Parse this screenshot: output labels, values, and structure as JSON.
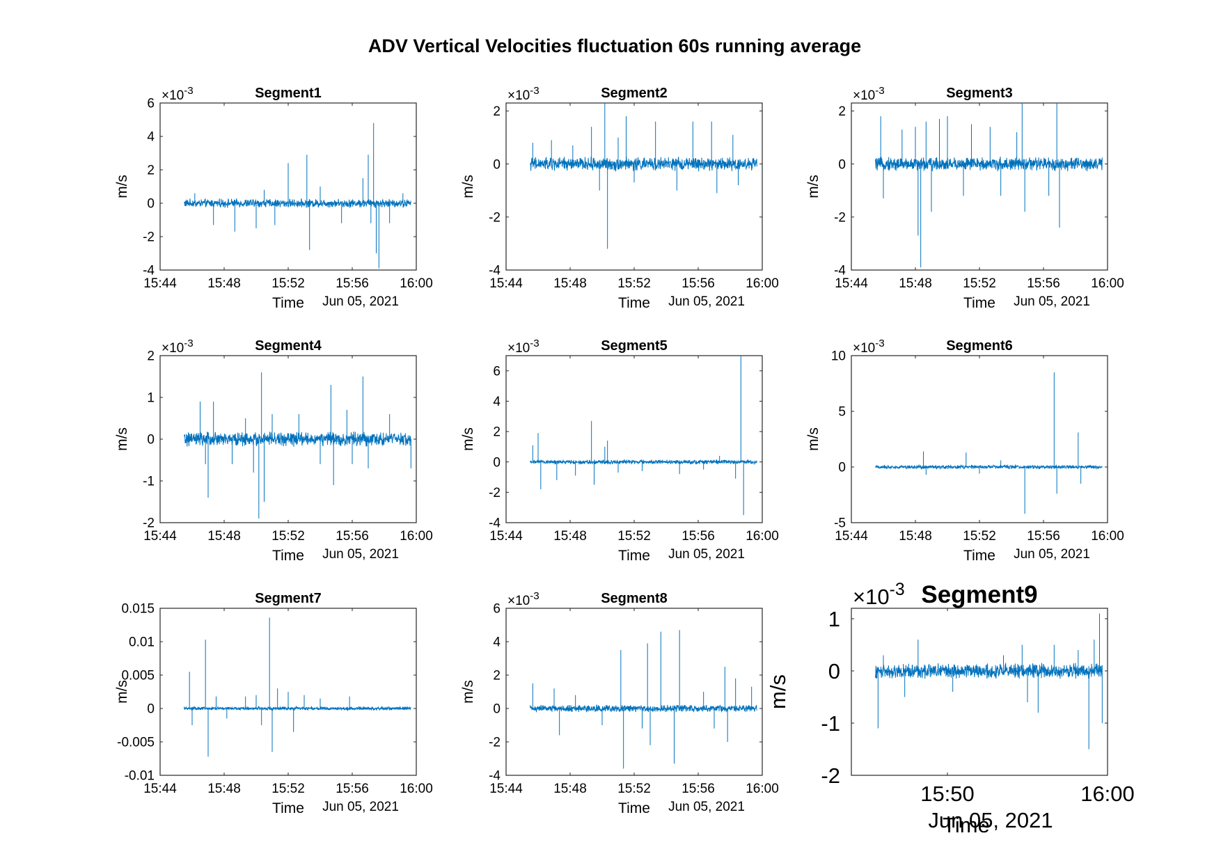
{
  "figure": {
    "title": "ADV Vertical Velocities fluctuation 60s running average",
    "line_color": "#0072BD"
  },
  "chart_data": [
    {
      "type": "line",
      "title": "Segment1",
      "xlabel": "Time",
      "ylabel": "m/s",
      "date_label": "Jun 05, 2021",
      "exponent_label": "×10",
      "exponent": "-3",
      "x_range": [
        "15:44",
        "16:00"
      ],
      "x_ticks": [
        "15:44",
        "15:48",
        "15:52",
        "15:56",
        "16:00"
      ],
      "y_range": [
        -4,
        6
      ],
      "y_ticks": [
        "-4",
        "-2",
        "0",
        "2",
        "4",
        "6"
      ],
      "data_x_range": [
        "15:45:30",
        "15:59:40"
      ],
      "noise": 0.18,
      "spikes": [
        {
          "x": "15:46:10",
          "y": 0.6
        },
        {
          "x": "15:47:20",
          "y": -1.3
        },
        {
          "x": "15:48:40",
          "y": -1.7
        },
        {
          "x": "15:50:00",
          "y": -1.5
        },
        {
          "x": "15:50:30",
          "y": 0.8
        },
        {
          "x": "15:51:10",
          "y": -1.3
        },
        {
          "x": "15:52:00",
          "y": 2.4
        },
        {
          "x": "15:53:10",
          "y": 2.9
        },
        {
          "x": "15:53:20",
          "y": -2.8
        },
        {
          "x": "15:54:00",
          "y": 1.0
        },
        {
          "x": "15:55:20",
          "y": -1.2
        },
        {
          "x": "15:56:40",
          "y": 1.5
        },
        {
          "x": "15:57:00",
          "y": 2.9
        },
        {
          "x": "15:57:10",
          "y": -1.2
        },
        {
          "x": "15:57:20",
          "y": 4.8
        },
        {
          "x": "15:57:30",
          "y": -3.0
        },
        {
          "x": "15:57:40",
          "y": -3.9
        },
        {
          "x": "15:58:20",
          "y": -1.2
        },
        {
          "x": "15:59:10",
          "y": 0.6
        }
      ]
    },
    {
      "type": "line",
      "title": "Segment2",
      "xlabel": "Time",
      "ylabel": "m/s",
      "date_label": "Jun 05, 2021",
      "exponent_label": "×10",
      "exponent": "-3",
      "x_range": [
        "15:44",
        "16:00"
      ],
      "x_ticks": [
        "15:44",
        "15:48",
        "15:52",
        "15:56",
        "16:00"
      ],
      "y_range": [
        -4,
        2.3
      ],
      "y_ticks": [
        "-4",
        "-2",
        "0",
        "2"
      ],
      "data_x_range": [
        "15:45:30",
        "15:59:40"
      ],
      "noise": 0.18,
      "spikes": [
        {
          "x": "15:45:40",
          "y": 0.8
        },
        {
          "x": "15:46:50",
          "y": 0.9
        },
        {
          "x": "15:48:10",
          "y": 0.7
        },
        {
          "x": "15:49:20",
          "y": 1.4
        },
        {
          "x": "15:49:50",
          "y": -1.0
        },
        {
          "x": "15:50:10",
          "y": 2.3
        },
        {
          "x": "15:50:20",
          "y": -3.2
        },
        {
          "x": "15:51:00",
          "y": 1.0
        },
        {
          "x": "15:51:30",
          "y": 1.8
        },
        {
          "x": "15:52:00",
          "y": -0.7
        },
        {
          "x": "15:53:20",
          "y": 1.6
        },
        {
          "x": "15:54:40",
          "y": -1.0
        },
        {
          "x": "15:55:40",
          "y": 1.6
        },
        {
          "x": "15:56:50",
          "y": 1.6
        },
        {
          "x": "15:57:10",
          "y": -1.1
        },
        {
          "x": "15:58:10",
          "y": 1.1
        },
        {
          "x": "15:58:30",
          "y": -0.8
        }
      ]
    },
    {
      "type": "line",
      "title": "Segment3",
      "xlabel": "Time",
      "ylabel": "m/s",
      "date_label": "Jun 05, 2021",
      "exponent_label": "×10",
      "exponent": "-3",
      "x_range": [
        "15:44",
        "16:00"
      ],
      "x_ticks": [
        "15:44",
        "15:48",
        "15:52",
        "15:56",
        "16:00"
      ],
      "y_range": [
        -4,
        2.3
      ],
      "y_ticks": [
        "-4",
        "-2",
        "0",
        "2"
      ],
      "data_x_range": [
        "15:45:30",
        "15:59:40"
      ],
      "noise": 0.18,
      "spikes": [
        {
          "x": "15:45:50",
          "y": 1.8
        },
        {
          "x": "15:46:00",
          "y": -1.3
        },
        {
          "x": "15:47:10",
          "y": 1.3
        },
        {
          "x": "15:48:00",
          "y": 1.4
        },
        {
          "x": "15:48:10",
          "y": -2.7
        },
        {
          "x": "15:48:20",
          "y": -3.9
        },
        {
          "x": "15:48:40",
          "y": 1.6
        },
        {
          "x": "15:49:00",
          "y": -1.8
        },
        {
          "x": "15:49:30",
          "y": 1.7
        },
        {
          "x": "15:50:00",
          "y": 1.8
        },
        {
          "x": "15:51:00",
          "y": -1.2
        },
        {
          "x": "15:51:30",
          "y": 1.5
        },
        {
          "x": "15:52:40",
          "y": 1.4
        },
        {
          "x": "15:53:20",
          "y": -1.2
        },
        {
          "x": "15:54:20",
          "y": 1.2
        },
        {
          "x": "15:54:40",
          "y": 2.3
        },
        {
          "x": "15:54:50",
          "y": -1.8
        },
        {
          "x": "15:56:20",
          "y": -1.2
        },
        {
          "x": "15:56:50",
          "y": 2.3
        },
        {
          "x": "15:57:00",
          "y": -2.4
        }
      ]
    },
    {
      "type": "line",
      "title": "Segment4",
      "xlabel": "Time",
      "ylabel": "m/s",
      "date_label": "Jun 05, 2021",
      "exponent_label": "×10",
      "exponent": "-3",
      "x_range": [
        "15:44",
        "16:00"
      ],
      "x_ticks": [
        "15:44",
        "15:48",
        "15:52",
        "15:56",
        "16:00"
      ],
      "y_range": [
        -2,
        2
      ],
      "y_ticks": [
        "-2",
        "-1",
        "0",
        "1",
        "2"
      ],
      "data_x_range": [
        "15:45:30",
        "15:59:40"
      ],
      "noise": 0.12,
      "spikes": [
        {
          "x": "15:46:30",
          "y": 0.9
        },
        {
          "x": "15:46:50",
          "y": -0.6
        },
        {
          "x": "15:47:00",
          "y": -1.4
        },
        {
          "x": "15:47:20",
          "y": 0.9
        },
        {
          "x": "15:48:30",
          "y": -0.6
        },
        {
          "x": "15:49:20",
          "y": 0.5
        },
        {
          "x": "15:49:50",
          "y": -0.8
        },
        {
          "x": "15:50:10",
          "y": -1.9
        },
        {
          "x": "15:50:20",
          "y": 1.6
        },
        {
          "x": "15:50:30",
          "y": -1.5
        },
        {
          "x": "15:51:00",
          "y": 0.6
        },
        {
          "x": "15:52:40",
          "y": 0.6
        },
        {
          "x": "15:54:00",
          "y": -0.6
        },
        {
          "x": "15:54:40",
          "y": 1.3
        },
        {
          "x": "15:54:50",
          "y": -1.1
        },
        {
          "x": "15:55:40",
          "y": 0.7
        },
        {
          "x": "15:56:00",
          "y": -0.6
        },
        {
          "x": "15:56:40",
          "y": 1.5
        },
        {
          "x": "15:57:00",
          "y": -0.7
        },
        {
          "x": "15:58:20",
          "y": 0.6
        },
        {
          "x": "15:59:40",
          "y": -0.7
        }
      ]
    },
    {
      "type": "line",
      "title": "Segment5",
      "xlabel": "Time",
      "ylabel": "m/s",
      "date_label": "Jun 05, 2021",
      "exponent_label": "×10",
      "exponent": "-3",
      "x_range": [
        "15:44",
        "16:00"
      ],
      "x_ticks": [
        "15:44",
        "15:48",
        "15:52",
        "15:56",
        "16:00"
      ],
      "y_range": [
        -4,
        7
      ],
      "y_ticks": [
        "-4",
        "-2",
        "0",
        "2",
        "4",
        "6"
      ],
      "data_x_range": [
        "15:45:30",
        "15:59:40"
      ],
      "noise": 0.1,
      "spikes": [
        {
          "x": "15:45:40",
          "y": 1.1
        },
        {
          "x": "15:46:00",
          "y": 1.9
        },
        {
          "x": "15:46:10",
          "y": -1.8
        },
        {
          "x": "15:47:10",
          "y": -1.2
        },
        {
          "x": "15:48:20",
          "y": -0.9
        },
        {
          "x": "15:49:20",
          "y": 2.7
        },
        {
          "x": "15:49:30",
          "y": -1.5
        },
        {
          "x": "15:50:10",
          "y": 1.0
        },
        {
          "x": "15:50:20",
          "y": 1.4
        },
        {
          "x": "15:51:00",
          "y": -0.7
        },
        {
          "x": "15:52:30",
          "y": -0.6
        },
        {
          "x": "15:54:50",
          "y": -0.8
        },
        {
          "x": "15:56:20",
          "y": -0.5
        },
        {
          "x": "15:57:20",
          "y": 0.4
        },
        {
          "x": "15:58:20",
          "y": -1.1
        },
        {
          "x": "15:58:40",
          "y": 7.0
        },
        {
          "x": "15:58:50",
          "y": -3.5
        }
      ]
    },
    {
      "type": "line",
      "title": "Segment6",
      "xlabel": "Time",
      "ylabel": "m/s",
      "date_label": "Jun 05, 2021",
      "exponent_label": "×10",
      "exponent": "-3",
      "x_range": [
        "15:44",
        "16:00"
      ],
      "x_ticks": [
        "15:44",
        "15:48",
        "15:52",
        "15:56",
        "16:00"
      ],
      "y_range": [
        -5,
        10
      ],
      "y_ticks": [
        "-5",
        "0",
        "5",
        "10"
      ],
      "data_x_range": [
        "15:45:30",
        "15:59:40"
      ],
      "noise": 0.12,
      "spikes": [
        {
          "x": "15:48:30",
          "y": 1.4
        },
        {
          "x": "15:48:40",
          "y": -0.7
        },
        {
          "x": "15:51:10",
          "y": 1.3
        },
        {
          "x": "15:52:00",
          "y": -0.6
        },
        {
          "x": "15:53:20",
          "y": 0.6
        },
        {
          "x": "15:54:50",
          "y": -4.2
        },
        {
          "x": "15:56:40",
          "y": 8.5
        },
        {
          "x": "15:56:50",
          "y": -2.4
        },
        {
          "x": "15:58:10",
          "y": 3.1
        },
        {
          "x": "15:58:20",
          "y": -1.5
        }
      ]
    },
    {
      "type": "line",
      "title": "Segment7",
      "xlabel": "Time",
      "ylabel": "m/s",
      "date_label": "Jun 05, 2021",
      "exponent_label": "",
      "exponent": "",
      "x_range": [
        "15:44",
        "16:00"
      ],
      "x_ticks": [
        "15:44",
        "15:48",
        "15:52",
        "15:56",
        "16:00"
      ],
      "y_range": [
        -0.01,
        0.015
      ],
      "y_ticks": [
        "-0.01",
        "-0.005",
        "0",
        "0.005",
        "0.01",
        "0.015"
      ],
      "data_x_range": [
        "15:45:30",
        "15:59:40"
      ],
      "noise": 0.00018,
      "spikes": [
        {
          "x": "15:45:50",
          "y": 0.0055
        },
        {
          "x": "15:46:00",
          "y": -0.0025
        },
        {
          "x": "15:46:50",
          "y": 0.0103
        },
        {
          "x": "15:47:00",
          "y": -0.0072
        },
        {
          "x": "15:47:30",
          "y": 0.0018
        },
        {
          "x": "15:48:10",
          "y": -0.0015
        },
        {
          "x": "15:49:20",
          "y": 0.0018
        },
        {
          "x": "15:50:00",
          "y": 0.002
        },
        {
          "x": "15:50:20",
          "y": -0.0025
        },
        {
          "x": "15:50:50",
          "y": 0.0136
        },
        {
          "x": "15:51:00",
          "y": -0.0065
        },
        {
          "x": "15:51:20",
          "y": 0.003
        },
        {
          "x": "15:52:00",
          "y": 0.0025
        },
        {
          "x": "15:52:20",
          "y": -0.0035
        },
        {
          "x": "15:53:00",
          "y": 0.002
        },
        {
          "x": "15:54:00",
          "y": 0.0015
        },
        {
          "x": "15:55:50",
          "y": 0.0018
        }
      ]
    },
    {
      "type": "line",
      "title": "Segment8",
      "xlabel": "Time",
      "ylabel": "m/s",
      "date_label": "Jun 05, 2021",
      "exponent_label": "×10",
      "exponent": "-3",
      "x_range": [
        "15:44",
        "16:00"
      ],
      "x_ticks": [
        "15:44",
        "15:48",
        "15:52",
        "15:56",
        "16:00"
      ],
      "y_range": [
        -4,
        6
      ],
      "y_ticks": [
        "-4",
        "-2",
        "0",
        "2",
        "4",
        "6"
      ],
      "data_x_range": [
        "15:45:30",
        "15:59:40"
      ],
      "noise": 0.15,
      "spikes": [
        {
          "x": "15:45:40",
          "y": 1.5
        },
        {
          "x": "15:47:00",
          "y": 1.2
        },
        {
          "x": "15:47:20",
          "y": -1.6
        },
        {
          "x": "15:48:20",
          "y": 0.8
        },
        {
          "x": "15:50:00",
          "y": -1.0
        },
        {
          "x": "15:51:10",
          "y": 3.5
        },
        {
          "x": "15:51:20",
          "y": -3.6
        },
        {
          "x": "15:52:30",
          "y": -1.2
        },
        {
          "x": "15:52:50",
          "y": 3.9
        },
        {
          "x": "15:53:00",
          "y": -2.2
        },
        {
          "x": "15:53:40",
          "y": 4.6
        },
        {
          "x": "15:54:30",
          "y": -3.3
        },
        {
          "x": "15:54:50",
          "y": 4.7
        },
        {
          "x": "15:56:20",
          "y": 1.0
        },
        {
          "x": "15:57:00",
          "y": -1.2
        },
        {
          "x": "15:57:40",
          "y": 2.5
        },
        {
          "x": "15:57:50",
          "y": -2.0
        },
        {
          "x": "15:58:20",
          "y": 1.8
        },
        {
          "x": "15:59:20",
          "y": 1.3
        }
      ]
    },
    {
      "type": "line",
      "title": "Segment9",
      "xlabel": "Time",
      "ylabel": "m/s",
      "date_label": "Jun 05, 2021",
      "exponent_label": "×10",
      "exponent": "-3",
      "x_range": [
        "15:44",
        "16:00"
      ],
      "x_ticks": [
        "15:50",
        "16:00"
      ],
      "y_range": [
        -2,
        1.2
      ],
      "y_ticks": [
        "-2",
        "-1",
        "0",
        "1"
      ],
      "data_x_range": [
        "15:45:30",
        "15:59:40"
      ],
      "noise": 0.1,
      "spikes": [
        {
          "x": "15:45:40",
          "y": -1.1
        },
        {
          "x": "15:46:00",
          "y": 0.3
        },
        {
          "x": "15:47:20",
          "y": -0.5
        },
        {
          "x": "15:48:10",
          "y": 0.6
        },
        {
          "x": "15:50:20",
          "y": -0.4
        },
        {
          "x": "15:53:30",
          "y": 0.3
        },
        {
          "x": "15:54:40",
          "y": 0.5
        },
        {
          "x": "15:55:00",
          "y": -0.6
        },
        {
          "x": "15:55:40",
          "y": -0.8
        },
        {
          "x": "15:56:40",
          "y": 0.5
        },
        {
          "x": "15:58:10",
          "y": 0.4
        },
        {
          "x": "15:58:50",
          "y": -1.5
        },
        {
          "x": "15:59:10",
          "y": 0.6
        },
        {
          "x": "15:59:30",
          "y": 1.1
        },
        {
          "x": "15:59:40",
          "y": -1.0
        }
      ]
    }
  ]
}
